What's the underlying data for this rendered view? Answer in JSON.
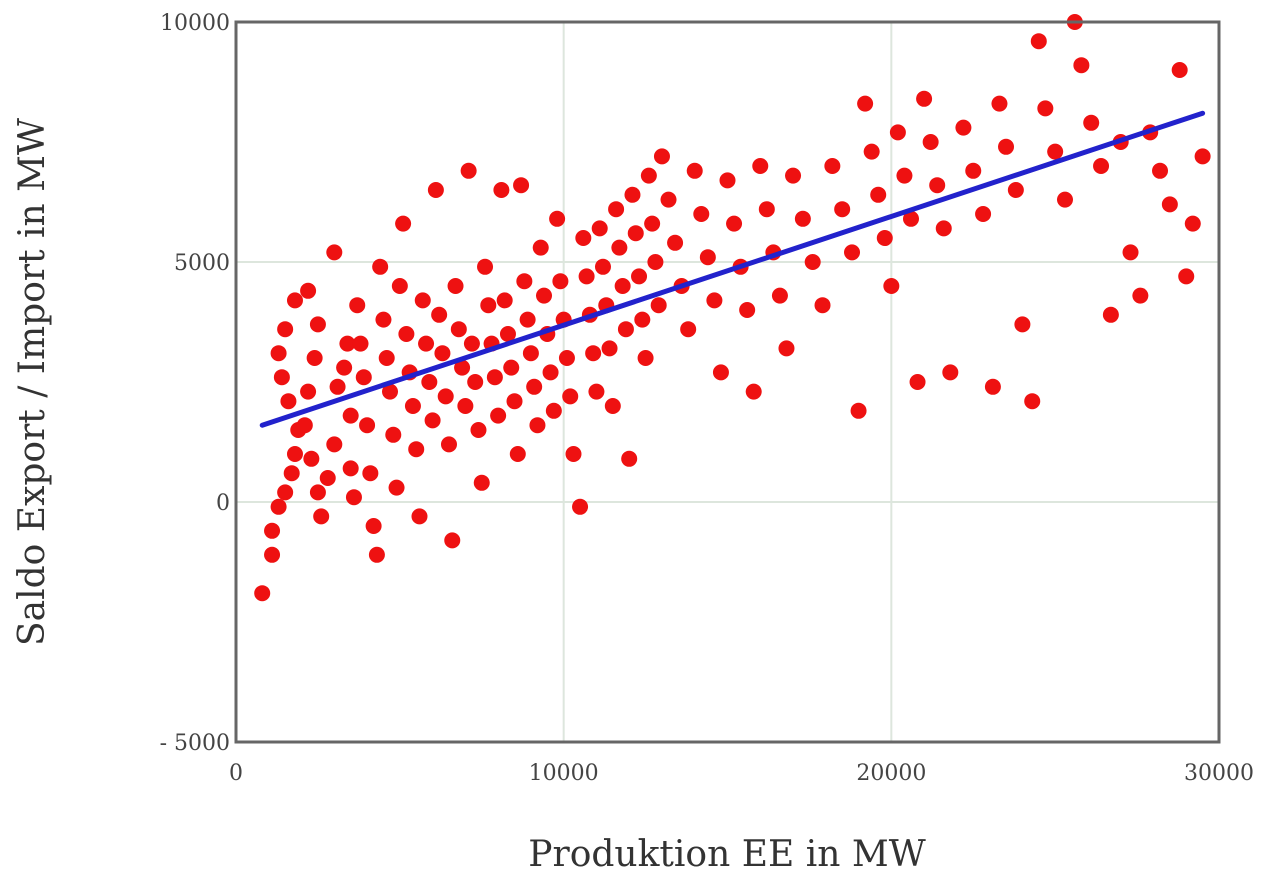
{
  "chart_data": {
    "type": "scatter",
    "title": "",
    "xlabel": "Produktion EE in MW",
    "ylabel": "Saldo Export / Import in MW",
    "xlim": [
      0,
      30000
    ],
    "ylim": [
      -5000,
      10000
    ],
    "x_ticks": [
      0,
      10000,
      20000,
      30000
    ],
    "y_ticks": [
      -5000,
      0,
      5000,
      10000
    ],
    "x_tick_labels": [
      "0",
      "10000",
      "20000",
      "30000"
    ],
    "y_tick_labels": [
      "- 5000",
      "0",
      "5000",
      "10000"
    ],
    "grid": true,
    "colors": {
      "points": "#ee1111",
      "fit_line": "#2222cc",
      "frame": "#666666",
      "grid": "#dde6dd"
    },
    "series": [
      {
        "kind": "points",
        "points": [
          [
            800,
            -1900
          ],
          [
            1100,
            -1100
          ],
          [
            1100,
            -600
          ],
          [
            1300,
            -100
          ],
          [
            1500,
            200
          ],
          [
            1700,
            600
          ],
          [
            1800,
            1000
          ],
          [
            1900,
            1500
          ],
          [
            1600,
            2100
          ],
          [
            1400,
            2600
          ],
          [
            1300,
            3100
          ],
          [
            1500,
            3600
          ],
          [
            1800,
            4200
          ],
          [
            2200,
            4400
          ],
          [
            2500,
            3700
          ],
          [
            2400,
            3000
          ],
          [
            2200,
            2300
          ],
          [
            2100,
            1600
          ],
          [
            2300,
            900
          ],
          [
            2500,
            200
          ],
          [
            2600,
            -300
          ],
          [
            2800,
            500
          ],
          [
            3000,
            1200
          ],
          [
            3000,
            5200
          ],
          [
            3100,
            2400
          ],
          [
            3300,
            2800
          ],
          [
            3400,
            3300
          ],
          [
            3500,
            1800
          ],
          [
            3500,
            700
          ],
          [
            3600,
            100
          ],
          [
            3700,
            4100
          ],
          [
            3800,
            3300
          ],
          [
            3900,
            2600
          ],
          [
            4000,
            1600
          ],
          [
            4100,
            600
          ],
          [
            4200,
            -500
          ],
          [
            4300,
            -1100
          ],
          [
            4400,
            4900
          ],
          [
            4500,
            3800
          ],
          [
            4600,
            3000
          ],
          [
            4700,
            2300
          ],
          [
            4800,
            1400
          ],
          [
            4900,
            300
          ],
          [
            5000,
            4500
          ],
          [
            5100,
            5800
          ],
          [
            5200,
            3500
          ],
          [
            5300,
            2700
          ],
          [
            5400,
            2000
          ],
          [
            5500,
            1100
          ],
          [
            5600,
            -300
          ],
          [
            5700,
            4200
          ],
          [
            5800,
            3300
          ],
          [
            5900,
            2500
          ],
          [
            6000,
            1700
          ],
          [
            6100,
            6500
          ],
          [
            6200,
            3900
          ],
          [
            6300,
            3100
          ],
          [
            6400,
            2200
          ],
          [
            6500,
            1200
          ],
          [
            6600,
            -800
          ],
          [
            6700,
            4500
          ],
          [
            6800,
            3600
          ],
          [
            6900,
            2800
          ],
          [
            7000,
            2000
          ],
          [
            7100,
            6900
          ],
          [
            7200,
            3300
          ],
          [
            7300,
            2500
          ],
          [
            7400,
            1500
          ],
          [
            7500,
            400
          ],
          [
            7600,
            4900
          ],
          [
            7700,
            4100
          ],
          [
            7800,
            3300
          ],
          [
            7900,
            2600
          ],
          [
            8000,
            1800
          ],
          [
            8100,
            6500
          ],
          [
            8200,
            4200
          ],
          [
            8300,
            3500
          ],
          [
            8400,
            2800
          ],
          [
            8500,
            2100
          ],
          [
            8600,
            1000
          ],
          [
            8700,
            6600
          ],
          [
            8800,
            4600
          ],
          [
            8900,
            3800
          ],
          [
            9000,
            3100
          ],
          [
            9100,
            2400
          ],
          [
            9200,
            1600
          ],
          [
            9300,
            5300
          ],
          [
            9400,
            4300
          ],
          [
            9500,
            3500
          ],
          [
            9600,
            2700
          ],
          [
            9700,
            1900
          ],
          [
            9800,
            5900
          ],
          [
            9900,
            4600
          ],
          [
            10000,
            3800
          ],
          [
            10100,
            3000
          ],
          [
            10200,
            2200
          ],
          [
            10300,
            1000
          ],
          [
            10500,
            -100
          ],
          [
            10600,
            5500
          ],
          [
            10700,
            4700
          ],
          [
            10800,
            3900
          ],
          [
            10900,
            3100
          ],
          [
            11000,
            2300
          ],
          [
            11100,
            5700
          ],
          [
            11200,
            4900
          ],
          [
            11300,
            4100
          ],
          [
            11400,
            3200
          ],
          [
            11500,
            2000
          ],
          [
            11600,
            6100
          ],
          [
            11700,
            5300
          ],
          [
            11800,
            4500
          ],
          [
            11900,
            3600
          ],
          [
            12000,
            900
          ],
          [
            12100,
            6400
          ],
          [
            12200,
            5600
          ],
          [
            12300,
            4700
          ],
          [
            12400,
            3800
          ],
          [
            12500,
            3000
          ],
          [
            12600,
            6800
          ],
          [
            12700,
            5800
          ],
          [
            12800,
            5000
          ],
          [
            12900,
            4100
          ],
          [
            13000,
            7200
          ],
          [
            13200,
            6300
          ],
          [
            13400,
            5400
          ],
          [
            13600,
            4500
          ],
          [
            13800,
            3600
          ],
          [
            14000,
            6900
          ],
          [
            14200,
            6000
          ],
          [
            14400,
            5100
          ],
          [
            14600,
            4200
          ],
          [
            14800,
            2700
          ],
          [
            15000,
            6700
          ],
          [
            15200,
            5800
          ],
          [
            15400,
            4900
          ],
          [
            15600,
            4000
          ],
          [
            15800,
            2300
          ],
          [
            16000,
            7000
          ],
          [
            16200,
            6100
          ],
          [
            16400,
            5200
          ],
          [
            16600,
            4300
          ],
          [
            16800,
            3200
          ],
          [
            17000,
            6800
          ],
          [
            17300,
            5900
          ],
          [
            17600,
            5000
          ],
          [
            17900,
            4100
          ],
          [
            18200,
            7000
          ],
          [
            18500,
            6100
          ],
          [
            18800,
            5200
          ],
          [
            19000,
            1900
          ],
          [
            19200,
            8300
          ],
          [
            19400,
            7300
          ],
          [
            19600,
            6400
          ],
          [
            19800,
            5500
          ],
          [
            20000,
            4500
          ],
          [
            20200,
            7700
          ],
          [
            20400,
            6800
          ],
          [
            20600,
            5900
          ],
          [
            20800,
            2500
          ],
          [
            21000,
            8400
          ],
          [
            21200,
            7500
          ],
          [
            21400,
            6600
          ],
          [
            21600,
            5700
          ],
          [
            21800,
            2700
          ],
          [
            22200,
            7800
          ],
          [
            22500,
            6900
          ],
          [
            22800,
            6000
          ],
          [
            23100,
            2400
          ],
          [
            23300,
            8300
          ],
          [
            23500,
            7400
          ],
          [
            23800,
            6500
          ],
          [
            24000,
            3700
          ],
          [
            24300,
            2100
          ],
          [
            24500,
            9600
          ],
          [
            24700,
            8200
          ],
          [
            25000,
            7300
          ],
          [
            25300,
            6300
          ],
          [
            25600,
            10000
          ],
          [
            25800,
            9100
          ],
          [
            26100,
            7900
          ],
          [
            26400,
            7000
          ],
          [
            26700,
            3900
          ],
          [
            27000,
            7500
          ],
          [
            27300,
            5200
          ],
          [
            27600,
            4300
          ],
          [
            27900,
            7700
          ],
          [
            28200,
            6900
          ],
          [
            28500,
            6200
          ],
          [
            28800,
            9000
          ],
          [
            29000,
            4700
          ],
          [
            29200,
            5800
          ],
          [
            29500,
            7200
          ]
        ]
      },
      {
        "kind": "line",
        "points": [
          [
            800,
            1600
          ],
          [
            29500,
            8100
          ]
        ]
      }
    ]
  }
}
